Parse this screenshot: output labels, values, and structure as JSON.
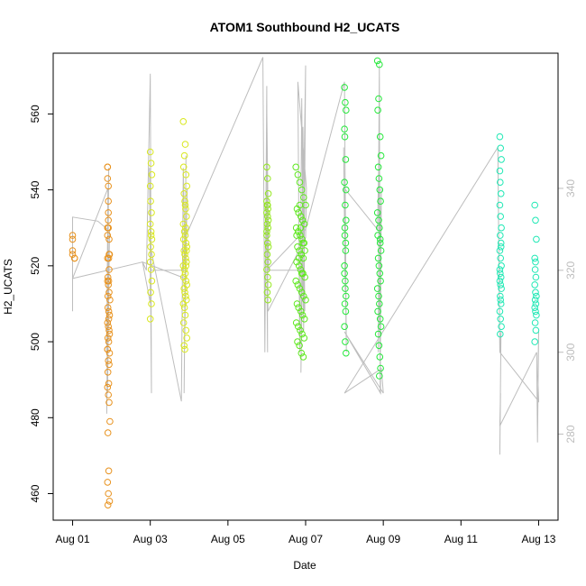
{
  "chart_data": {
    "type": "scatter",
    "title": "ATOM1 Southbound H2_UCATS",
    "xlabel": "Date",
    "ylabel": "H2_UCATS",
    "x_ticks": [
      {
        "value": 0,
        "label": "Aug 01"
      },
      {
        "value": 2,
        "label": "Aug 03"
      },
      {
        "value": 4,
        "label": "Aug 05"
      },
      {
        "value": 6,
        "label": "Aug 07"
      },
      {
        "value": 8,
        "label": "Aug 09"
      },
      {
        "value": 10,
        "label": "Aug 11"
      },
      {
        "value": 12,
        "label": "Aug 13"
      }
    ],
    "xlim": [
      -0.5,
      12.5
    ],
    "ylim": [
      453,
      576
    ],
    "y_ticks": [
      460,
      480,
      500,
      520,
      540,
      560
    ],
    "y2_ticks": [
      280,
      300,
      320,
      340
    ],
    "y2lim": [
      259,
      373
    ],
    "grid": false,
    "colors": {
      "axis": "#000000",
      "right_axis": "#bdbdbd",
      "profile_line": "#bdbdbd"
    },
    "series": [
      {
        "color": "#e8921e",
        "x": [
          0,
          0,
          0,
          0,
          0.05,
          0.05,
          0.9,
          0.9,
          0.9,
          0.92,
          0.92,
          0.92,
          0.92,
          0.9,
          0.9,
          0.94,
          0.94,
          0.95,
          0.93,
          0.91,
          0.9,
          0.92,
          0.94,
          0.96,
          0.91,
          0.93,
          0.95,
          0.9,
          0.92,
          0.94,
          0.91,
          0.93,
          0.9,
          0.95,
          0.92,
          0.94,
          0.91,
          0.93,
          0.9,
          0.92,
          0.94,
          0.96,
          0.91,
          0.93,
          0.9,
          0.92,
          0.95,
          0.91,
          0.93,
          0.9,
          0.92,
          0.94,
          0.91,
          0.93,
          0.95,
          0.9
        ],
        "y": [
          528,
          527,
          524,
          523,
          522,
          522,
          546,
          546,
          543,
          541,
          537,
          534,
          532,
          530,
          528,
          527,
          523,
          523,
          522,
          517,
          516,
          515,
          513,
          511,
          509,
          508,
          507,
          505,
          504,
          503,
          501,
          500,
          498,
          497,
          495,
          494,
          492,
          489,
          488,
          486,
          484,
          479,
          476,
          466,
          463,
          460,
          458,
          457,
          516,
          522,
          530,
          519,
          512,
          506,
          502,
          498
        ]
      },
      {
        "color": "#d9e81e",
        "x": [
          2.0,
          2.02,
          2.04,
          2.0,
          2.01,
          2.03,
          2.0,
          2.02,
          2.04,
          2.01,
          2.03,
          2.0,
          2.02,
          2.04,
          2.01,
          2.03,
          2.0,
          2.02,
          2.85,
          2.9,
          2.88,
          2.86,
          2.92,
          2.94,
          2.87,
          2.89,
          2.91,
          2.93,
          2.85,
          2.88,
          2.9,
          2.86,
          2.92,
          2.94,
          2.87,
          2.89,
          2.91,
          2.93,
          2.85,
          2.88,
          2.9,
          2.86,
          2.92,
          2.94,
          2.87,
          2.89,
          2.91,
          2.93,
          2.85,
          2.88,
          2.9,
          2.86,
          2.92,
          2.94,
          2.87,
          2.89,
          2.91,
          2.93,
          2.9,
          2.92
        ],
        "y": [
          550,
          547,
          544,
          541,
          537,
          534,
          531,
          529,
          527,
          525,
          523,
          521,
          519,
          516,
          513,
          510,
          506,
          528,
          558,
          552,
          549,
          546,
          544,
          541,
          539,
          537,
          535,
          533,
          531,
          529,
          528,
          527,
          526,
          525,
          524,
          523,
          522,
          521,
          520,
          519,
          518,
          517,
          516,
          515,
          514,
          513,
          512,
          511,
          510,
          509,
          507,
          505,
          503,
          501,
          499,
          498,
          530,
          524,
          536,
          520
        ]
      },
      {
        "color": "#94e81e",
        "x": [
          5.0,
          5.02,
          5.04,
          5.0,
          5.01,
          5.03,
          5.0,
          5.02,
          5.04,
          5.01,
          5.03,
          5.0,
          5.02,
          5.04,
          5.01,
          5.03,
          5.0,
          5.02,
          5.04,
          5.01,
          5.03,
          5.0,
          5.02
        ],
        "y": [
          546,
          543,
          539,
          537,
          536,
          535,
          534,
          533,
          532,
          531,
          530,
          528,
          526,
          525,
          523,
          521,
          519,
          517,
          515,
          513,
          511,
          529,
          536
        ]
      },
      {
        "color": "#5ee81e",
        "x": [
          5.75,
          5.8,
          5.85,
          5.9,
          5.95,
          6.0,
          5.78,
          5.82,
          5.88,
          5.92,
          5.97,
          5.76,
          5.81,
          5.86,
          5.91,
          5.96,
          5.79,
          5.84,
          5.89,
          5.94,
          5.77,
          5.83,
          5.87,
          5.93,
          5.98,
          5.75,
          5.8,
          5.85,
          5.9,
          5.95,
          6.0,
          5.78,
          5.82,
          5.88,
          5.92,
          5.97,
          5.76,
          5.81,
          5.86,
          5.91,
          5.96,
          5.79,
          5.84,
          5.89,
          5.94,
          5.77,
          5.83,
          5.87,
          5.93,
          5.98,
          5.85,
          5.9
        ],
        "y": [
          546,
          544,
          542,
          540,
          538,
          536,
          535,
          534,
          533,
          532,
          531,
          530,
          529,
          528,
          527,
          526,
          525,
          524,
          523,
          522,
          521,
          520,
          519,
          518,
          517,
          516,
          515,
          514,
          513,
          512,
          511,
          510,
          509,
          508,
          507,
          506,
          505,
          504,
          503,
          502,
          501,
          500,
          499,
          497,
          496,
          528,
          522,
          530,
          526,
          524,
          536,
          518
        ]
      },
      {
        "color": "#24e83a",
        "x": [
          7.0,
          7.02,
          7.04,
          7.0,
          7.01,
          7.03,
          7.0,
          7.02,
          7.04,
          7.01,
          7.03,
          7.0,
          7.02,
          7.04,
          7.01,
          7.03,
          7.0,
          7.02,
          7.04,
          7.01,
          7.03,
          7.0,
          7.02,
          7.04,
          7.85,
          7.9,
          7.88,
          7.86,
          7.92,
          7.94,
          7.87,
          7.89,
          7.91,
          7.93,
          7.85,
          7.88,
          7.9,
          7.86,
          7.92,
          7.94,
          7.87,
          7.89,
          7.91,
          7.93,
          7.85,
          7.88,
          7.9,
          7.86,
          7.92,
          7.94,
          7.87,
          7.89,
          7.91,
          7.93,
          7.9,
          7.92
        ],
        "y": [
          567,
          563,
          561,
          556,
          554,
          548,
          542,
          536,
          532,
          528,
          524,
          520,
          516,
          512,
          510,
          508,
          504,
          500,
          497,
          530,
          526,
          518,
          514,
          540,
          574,
          573,
          564,
          561,
          554,
          549,
          546,
          543,
          540,
          537,
          534,
          532,
          530,
          528,
          526,
          524,
          522,
          520,
          518,
          516,
          514,
          512,
          510,
          508,
          506,
          504,
          502,
          499,
          496,
          493,
          491,
          527
        ]
      },
      {
        "color": "#1ee8b4",
        "x": [
          11.0,
          11.02,
          11.04,
          11.0,
          11.01,
          11.03,
          11.0,
          11.02,
          11.04,
          11.01,
          11.03,
          11.0,
          11.02,
          11.04,
          11.01,
          11.03,
          11.0,
          11.02,
          11.04,
          11.01,
          11.03,
          11.0,
          11.02,
          11.04,
          11.01,
          11.03,
          11.0,
          11.02,
          11.9,
          11.92,
          11.94,
          11.9,
          11.91,
          11.93,
          11.9,
          11.92,
          11.94,
          11.91,
          11.93,
          11.9,
          11.92,
          11.94,
          11.91,
          11.93,
          11.9,
          11.92
        ],
        "y": [
          554,
          551,
          548,
          545,
          542,
          539,
          536,
          533,
          530,
          528,
          526,
          524,
          522,
          520,
          518,
          517,
          516,
          515,
          514,
          512,
          510,
          508,
          506,
          504,
          502,
          525,
          519,
          511,
          536,
          532,
          527,
          522,
          519,
          517,
          515,
          513,
          512,
          511,
          510,
          509,
          508,
          507,
          505,
          503,
          500,
          521
        ]
      }
    ],
    "line_right_axis": {
      "comment_free": true,
      "x": [
        0,
        0,
        0.65,
        0.9,
        0.93,
        0.88,
        0.95,
        0.9,
        0.92,
        0.88,
        0.91,
        0.0,
        1.8,
        1.9,
        2.0,
        2.03,
        1.98,
        2.02,
        2.8,
        2.85,
        2.9,
        2.87,
        2.92,
        2.88,
        2.95,
        2.9,
        1.8,
        2.0,
        2.0,
        2.85,
        2.9,
        4.9,
        4.95,
        5.0,
        5.02,
        4.98,
        5.05,
        5.0,
        5.03,
        6.0,
        6.02,
        5.8,
        5.85,
        5.9,
        5.95,
        6.0,
        5.88,
        5.93,
        5.98,
        5.9,
        5.0,
        6.0,
        7.0,
        7.05,
        6.98,
        7.02,
        7.0,
        7.85,
        7.88,
        7.9,
        7.92,
        7.95,
        7.87,
        7.9,
        7.93,
        7.0,
        8.0,
        7.95,
        7.0,
        10.95,
        11.0,
        11.03,
        11.0,
        11.02,
        11.0,
        11.95,
        11.97,
        12.0,
        11.98,
        12.0,
        11.0
      ],
      "y": [
        310,
        333,
        332,
        330,
        345,
        285,
        330,
        290,
        325,
        300,
        340,
        318,
        322,
        320,
        368,
        290,
        345,
        325,
        288,
        345,
        318,
        290,
        348,
        300,
        340,
        318,
        322,
        312,
        320,
        320,
        328,
        372,
        300,
        365,
        300,
        340,
        320,
        360,
        310,
        328,
        340,
        366,
        300,
        362,
        305,
        370,
        295,
        355,
        310,
        320,
        320,
        330,
        366,
        300,
        350,
        315,
        340,
        330,
        344,
        370,
        290,
        340,
        300,
        360,
        290,
        305,
        290,
        296,
        290,
        350,
        300,
        305,
        275,
        290,
        282,
        300,
        278,
        305,
        294,
        288,
        300
      ]
    }
  }
}
